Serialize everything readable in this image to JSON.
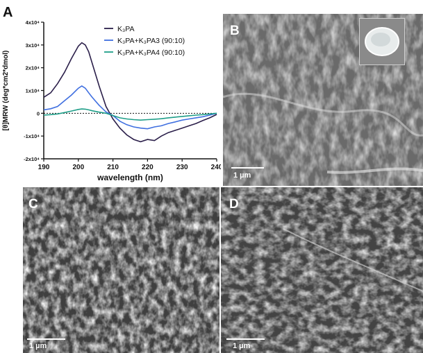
{
  "panels": {
    "a": {
      "letter": "A"
    },
    "b": {
      "letter": "B",
      "scale_label": "1 µm"
    },
    "c": {
      "letter": "C",
      "scale_label": "1 µm"
    },
    "d": {
      "letter": "D",
      "scale_label": "1 µm"
    }
  },
  "chart_data": {
    "type": "line",
    "title": "",
    "xlabel": "wavelength (nm)",
    "ylabel": "[θ]MRW (deg*cm2*dmol)",
    "xlim": [
      190,
      240
    ],
    "ylim": [
      -20000,
      40000
    ],
    "x_ticks": [
      "190",
      "200",
      "210",
      "220",
      "230",
      "240"
    ],
    "y_ticks": [
      "4x10⁴",
      "3x10⁴",
      "2x10⁴",
      "1x10⁴",
      "0",
      "-1x10⁴",
      "-2x10⁴"
    ],
    "zero_line": "dotted",
    "legend_position": "top-right",
    "series": [
      {
        "name": "K₃PA",
        "color": "#2b1f4a",
        "x": [
          190,
          192,
          194,
          196,
          198,
          200,
          201,
          202,
          203,
          204,
          206,
          208,
          210,
          212,
          214,
          216,
          218,
          220,
          222,
          224,
          226,
          228,
          230,
          232,
          234,
          236,
          238,
          240
        ],
        "y": [
          7000,
          9000,
          13000,
          18000,
          24000,
          29500,
          31000,
          30000,
          27000,
          22000,
          12000,
          3000,
          -2500,
          -6500,
          -9500,
          -11500,
          -12500,
          -11500,
          -12000,
          -10000,
          -8500,
          -7500,
          -6500,
          -5500,
          -4500,
          -3200,
          -2000,
          -500
        ]
      },
      {
        "name": "K₃PA+K₃PA3 (90:10)",
        "color": "#3f6fe0",
        "x": [
          190,
          192,
          194,
          196,
          198,
          200,
          201,
          202,
          203,
          204,
          206,
          208,
          210,
          212,
          214,
          216,
          218,
          220,
          222,
          224,
          226,
          228,
          230,
          232,
          234,
          236,
          238,
          240
        ],
        "y": [
          1500,
          2000,
          3000,
          5500,
          8000,
          11000,
          12000,
          11000,
          9000,
          7000,
          3500,
          600,
          -1000,
          -3500,
          -5000,
          -6000,
          -6500,
          -6800,
          -6000,
          -5500,
          -4500,
          -3800,
          -3000,
          -2500,
          -2000,
          -1500,
          -800,
          0
        ]
      },
      {
        "name": "K₃PA+K₃PA4 (90:10)",
        "color": "#1e9e88",
        "x": [
          190,
          192,
          194,
          196,
          198,
          200,
          201,
          202,
          203,
          204,
          206,
          208,
          210,
          212,
          214,
          216,
          218,
          220,
          222,
          224,
          226,
          228,
          230,
          232,
          234,
          236,
          238,
          240
        ],
        "y": [
          -800,
          -600,
          -300,
          300,
          1000,
          1700,
          1900,
          1800,
          1500,
          1100,
          500,
          0,
          -1000,
          -2000,
          -2500,
          -2800,
          -3000,
          -2800,
          -2600,
          -2400,
          -2000,
          -1700,
          -1400,
          -1100,
          -800,
          -600,
          -300,
          0
        ]
      }
    ]
  }
}
